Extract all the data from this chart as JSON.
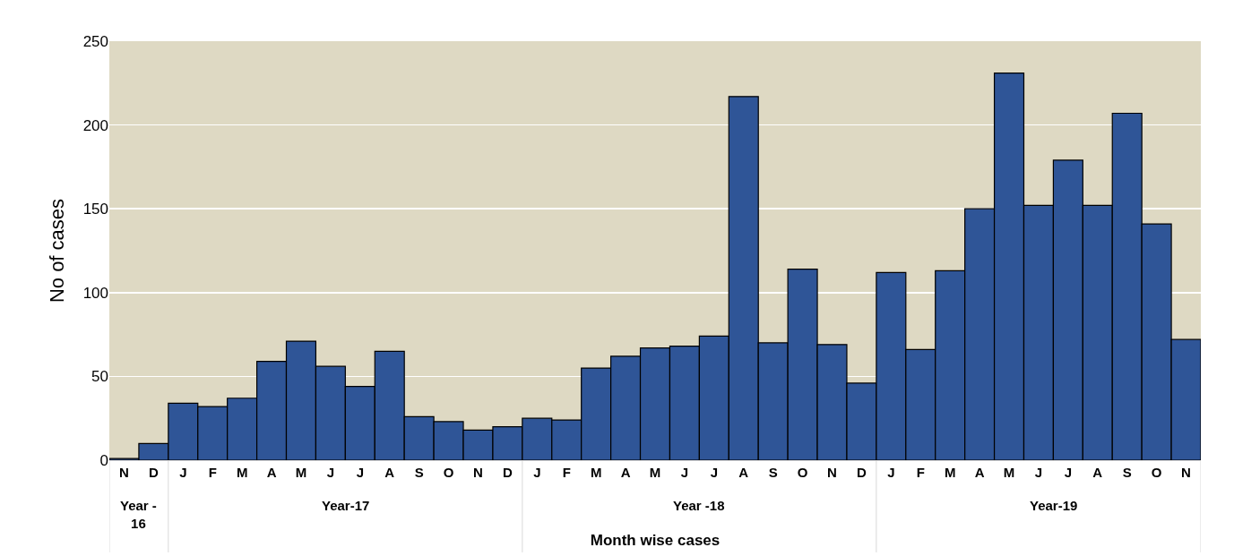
{
  "chart_data": {
    "type": "bar",
    "xlabel": "Month wise cases",
    "ylabel": "No of cases",
    "categories": [
      "N",
      "D",
      "J",
      "F",
      "M",
      "A",
      "M",
      "J",
      "J",
      "A",
      "S",
      "O",
      "N",
      "D",
      "J",
      "F",
      "M",
      "A",
      "M",
      "J",
      "J",
      "A",
      "S",
      "O",
      "N",
      "D",
      "J",
      "F",
      "M",
      "A",
      "M",
      "J",
      "J",
      "A",
      "S",
      "O",
      "N"
    ],
    "values": [
      1,
      10,
      34,
      32,
      37,
      59,
      71,
      56,
      44,
      65,
      26,
      23,
      18,
      20,
      25,
      24,
      55,
      62,
      67,
      68,
      74,
      217,
      70,
      114,
      69,
      46,
      112,
      66,
      113,
      150,
      231,
      152,
      179,
      152,
      207,
      141,
      72
    ],
    "color": "#2f5597",
    "ylim": [
      0,
      250
    ],
    "yticks": [
      0,
      50,
      100,
      150,
      200,
      250
    ],
    "grid": "y",
    "annotations": [
      "Year -\n16",
      "Year-17",
      "Year -18",
      "Year-19"
    ]
  }
}
